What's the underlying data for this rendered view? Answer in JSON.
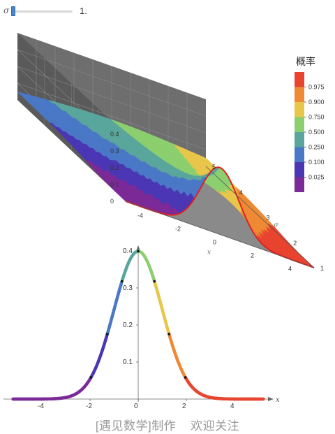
{
  "slider": {
    "label": "σ",
    "value_text": "1.",
    "value": 1,
    "min": 1,
    "max": 5
  },
  "legend": {
    "title": "概率",
    "levels": [
      "0.025",
      "0.100",
      "0.250",
      "0.500",
      "0.750",
      "0.900",
      "0.975"
    ],
    "colors": [
      "#7b2a97",
      "#4b37b4",
      "#4a78c6",
      "#5aa69c",
      "#8ccf6f",
      "#e8c64a",
      "#ee8a35",
      "#e8442f"
    ]
  },
  "watermark": "[遇见数学]制作    欢迎关注",
  "chart_data": [
    {
      "type": "surface",
      "function": "normal pdf f(x, σ) = exp(-x²/(2σ²)) / (σ√(2π))",
      "x_label": "x",
      "y_label": "σ",
      "x_range": [
        -5,
        5
      ],
      "sigma_range": [
        1,
        5
      ],
      "z_range": [
        0,
        0.4
      ],
      "x_ticks": [
        "-4",
        "-2",
        "0",
        "2",
        "4"
      ],
      "sigma_ticks": [
        "1",
        "2",
        "3",
        "4",
        "5"
      ],
      "z_ticks": [
        "0",
        "0.1",
        "0.2",
        "0.3",
        "0.4"
      ],
      "color_by": "cumulative probability",
      "highlight_section_sigma": 1
    },
    {
      "type": "line",
      "function": "normal pdf, σ = 1",
      "sigma": 1,
      "x_label": "x",
      "x_range": [
        -5.2,
        5.2
      ],
      "y_range": [
        0,
        0.42
      ],
      "x_ticks": [
        "-4",
        "-2",
        "0",
        "2",
        "4"
      ],
      "y_ticks": [
        "0.1",
        "0.2",
        "0.3",
        "0.4"
      ],
      "marker_probabilities": [
        0.025,
        0.1,
        0.25,
        0.5,
        0.75,
        0.9,
        0.975
      ],
      "color_by": "cumulative probability"
    }
  ]
}
